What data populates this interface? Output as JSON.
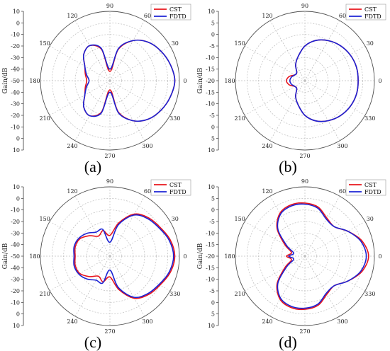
{
  "chart_data": [
    {
      "type": "polar-line",
      "label": "(a)",
      "ylabel": "Gain/dB",
      "r_ticks": [
        "10",
        "0",
        "-10",
        "-20",
        "-30",
        "-40",
        "-50"
      ],
      "r_range": [
        -50,
        10
      ],
      "angle_labels": [
        "0",
        "30",
        "60",
        "90",
        "120",
        "150",
        "180",
        "210",
        "240",
        "270",
        "300",
        "330"
      ],
      "legend": {
        "position": "top-right"
      },
      "series": [
        {
          "name": "CST",
          "color": "#e8141c",
          "theta": [
            0,
            15,
            30,
            45,
            60,
            75,
            90,
            105,
            120,
            135,
            150,
            165,
            180,
            195,
            210,
            225,
            240,
            255,
            270,
            285,
            300,
            315,
            330,
            345
          ],
          "values": [
            6,
            4,
            1,
            -3,
            -10,
            -22,
            -42,
            -22,
            -15,
            -18,
            -25,
            -28,
            -30,
            -28,
            -25,
            -18,
            -15,
            -22,
            -42,
            -22,
            -10,
            -3,
            1,
            4
          ]
        },
        {
          "name": "FDTD",
          "color": "#1b22d4",
          "theta": [
            0,
            15,
            30,
            45,
            60,
            75,
            90,
            105,
            120,
            135,
            150,
            165,
            180,
            195,
            210,
            225,
            240,
            255,
            270,
            285,
            300,
            315,
            330,
            345
          ],
          "values": [
            6,
            4,
            1,
            -3,
            -10,
            -21,
            -40,
            -21,
            -15,
            -18,
            -25,
            -29,
            -32,
            -29,
            -25,
            -18,
            -15,
            -21,
            -40,
            -21,
            -10,
            -3,
            1,
            4
          ]
        }
      ]
    },
    {
      "type": "polar-line",
      "label": "(b)",
      "ylabel": "Gain/dB",
      "r_ticks": [
        "10",
        "5",
        "0",
        "-5",
        "-10",
        "-15",
        "-20"
      ],
      "r_range": [
        -20,
        10
      ],
      "angle_labels": [
        "0",
        "30",
        "60",
        "90",
        "120",
        "150",
        "180",
        "210",
        "240",
        "270",
        "300",
        "330"
      ],
      "legend": {
        "position": "top-right"
      },
      "series": [
        {
          "name": "CST",
          "color": "#e8141c",
          "theta": [
            0,
            15,
            30,
            45,
            60,
            75,
            90,
            105,
            120,
            135,
            150,
            165,
            180,
            195,
            210,
            225,
            240,
            255,
            270,
            285,
            300,
            315,
            330,
            345
          ],
          "values": [
            3,
            3,
            2.5,
            1.5,
            0,
            -2,
            -5,
            -9,
            -12,
            -15,
            -15,
            -13,
            -12,
            -13,
            -15,
            -15,
            -12,
            -9,
            -5,
            -2,
            0,
            1.5,
            2.5,
            3
          ]
        },
        {
          "name": "FDTD",
          "color": "#1b22d4",
          "theta": [
            0,
            15,
            30,
            45,
            60,
            75,
            90,
            105,
            120,
            135,
            150,
            165,
            180,
            195,
            210,
            225,
            240,
            255,
            270,
            285,
            300,
            315,
            330,
            345
          ],
          "values": [
            3,
            3,
            2.5,
            1.5,
            0,
            -2,
            -5,
            -9,
            -12,
            -15,
            -15,
            -14,
            -13.5,
            -14,
            -15,
            -15,
            -12,
            -9,
            -5,
            -2,
            0,
            1.5,
            2.5,
            3
          ]
        }
      ]
    },
    {
      "type": "polar-line",
      "label": "(c)",
      "ylabel": "Gain/dB",
      "r_ticks": [
        "10",
        "0",
        "-10",
        "-20",
        "-30",
        "-40",
        "-50"
      ],
      "r_range": [
        -50,
        10
      ],
      "angle_labels": [
        "0",
        "30",
        "60",
        "90",
        "120",
        "150",
        "180",
        "210",
        "240",
        "270",
        "300",
        "330"
      ],
      "legend": {
        "position": "top-right"
      },
      "series": [
        {
          "name": "CST",
          "color": "#e8141c",
          "theta": [
            0,
            15,
            30,
            45,
            60,
            75,
            90,
            105,
            120,
            135,
            150,
            165,
            180,
            195,
            210,
            225,
            240,
            255,
            270,
            285,
            300,
            315,
            330,
            345
          ],
          "values": [
            6,
            4,
            0,
            -3,
            -8,
            -20,
            -32,
            -27,
            -30,
            -25,
            -20,
            -19,
            -20,
            -19,
            -20,
            -25,
            -30,
            -27,
            -32,
            -20,
            -8,
            -3,
            0,
            4
          ]
        },
        {
          "name": "FDTD",
          "color": "#1b22d4",
          "theta": [
            0,
            15,
            30,
            45,
            60,
            75,
            90,
            105,
            120,
            135,
            150,
            165,
            180,
            195,
            210,
            225,
            240,
            255,
            270,
            285,
            300,
            315,
            330,
            345
          ],
          "values": [
            5,
            3,
            -1,
            -4,
            -9,
            -22,
            -38,
            -26,
            -26,
            -22,
            -19,
            -18,
            -19,
            -18,
            -19,
            -22,
            -26,
            -26,
            -38,
            -22,
            -9,
            -4,
            -1,
            3
          ]
        }
      ]
    },
    {
      "type": "polar-line",
      "label": "(d)",
      "ylabel": "Gain/dB",
      "r_ticks": [
        "10",
        "5",
        "0",
        "-5",
        "-10",
        "-15",
        "-20"
      ],
      "r_range": [
        -20,
        10
      ],
      "angle_labels": [
        "0",
        "30",
        "60",
        "90",
        "120",
        "150",
        "180",
        "210",
        "240",
        "270",
        "300",
        "330"
      ],
      "legend": {
        "position": "top-right"
      },
      "series": [
        {
          "name": "CST",
          "color": "#e8141c",
          "theta": [
            0,
            15,
            30,
            45,
            60,
            75,
            90,
            105,
            120,
            135,
            150,
            165,
            180,
            195,
            210,
            225,
            240,
            255,
            270,
            285,
            300,
            315,
            330,
            345
          ],
          "values": [
            7.5,
            5.5,
            1.5,
            -2,
            -1,
            2,
            3,
            3,
            1.5,
            -3,
            -10,
            -14,
            -12,
            -14,
            -10,
            -3,
            1.5,
            3,
            3,
            2,
            -1,
            -2,
            1.5,
            5.5
          ]
        },
        {
          "name": "FDTD",
          "color": "#1b22d4",
          "theta": [
            0,
            15,
            30,
            45,
            60,
            75,
            90,
            105,
            120,
            135,
            150,
            165,
            180,
            195,
            210,
            225,
            240,
            255,
            270,
            285,
            300,
            315,
            330,
            345
          ],
          "values": [
            6.5,
            5,
            1.5,
            -2,
            -1.5,
            1.5,
            2.5,
            2.5,
            1,
            -3.5,
            -11,
            -15,
            -13,
            -15,
            -11,
            -3.5,
            1,
            2.5,
            2.5,
            1.5,
            -1.5,
            -2,
            1.5,
            5
          ]
        }
      ]
    }
  ]
}
